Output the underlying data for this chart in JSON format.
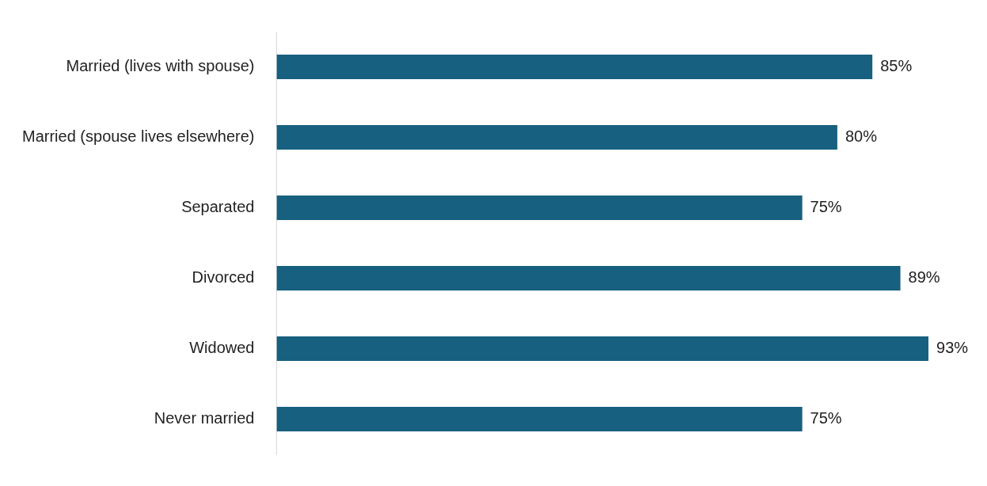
{
  "chart_data": {
    "type": "bar",
    "orientation": "horizontal",
    "categories": [
      "Married (lives with spouse)",
      "Married (spouse lives elsewhere)",
      "Separated",
      "Divorced",
      "Widowed",
      "Never married"
    ],
    "values": [
      85,
      80,
      75,
      89,
      93,
      75
    ],
    "value_labels": [
      "85%",
      "80%",
      "75%",
      "89%",
      "93%",
      "75%"
    ],
    "color": "#17607f",
    "tick_labels": "y",
    "grid": false,
    "legend": false
  }
}
